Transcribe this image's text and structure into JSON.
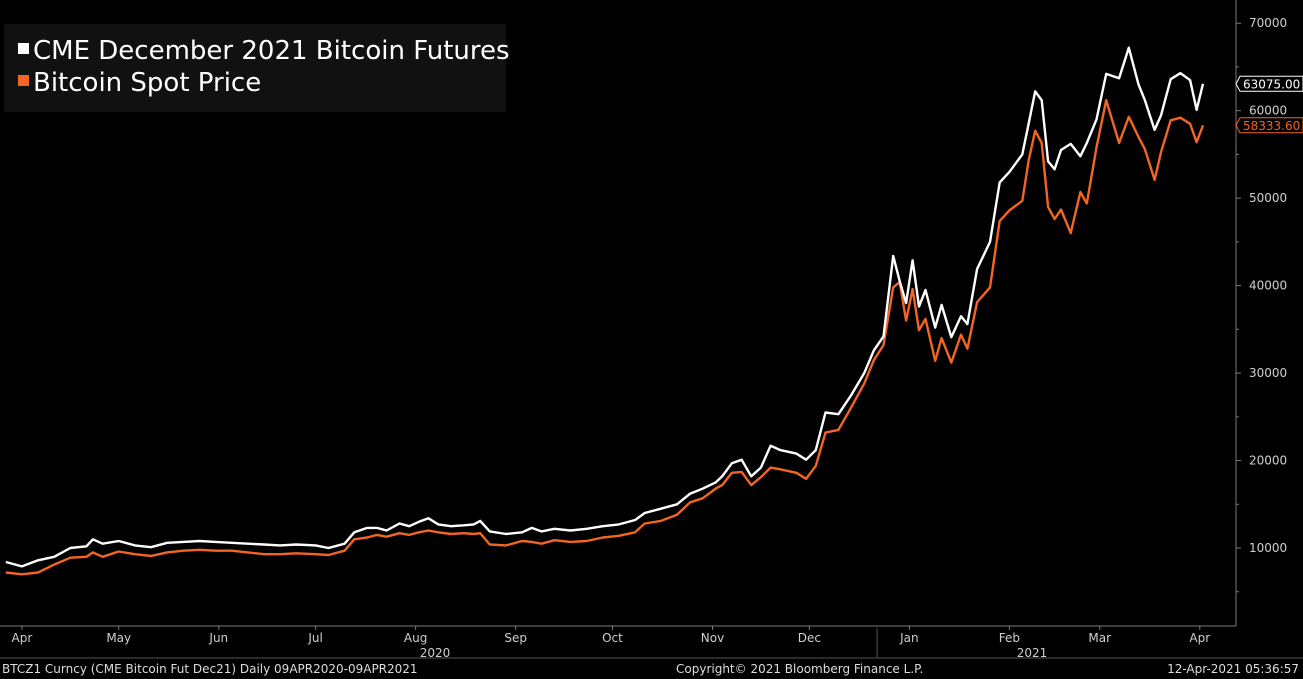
{
  "chart_data": {
    "type": "line",
    "yaxis_position": "right",
    "ylim": [
      0,
      72000
    ],
    "yticks": [
      10000,
      20000,
      30000,
      40000,
      50000,
      60000,
      70000
    ],
    "ytick_labels": [
      "10000",
      "20000",
      "30000",
      "40000",
      "50000",
      "60000",
      "70000"
    ],
    "x_months": [
      {
        "label": "Apr",
        "day": 5
      },
      {
        "label": "May",
        "day": 35
      },
      {
        "label": "Jun",
        "day": 66
      },
      {
        "label": "Jul",
        "day": 96
      },
      {
        "label": "Aug",
        "day": 127
      },
      {
        "label": "Sep",
        "day": 158
      },
      {
        "label": "Oct",
        "day": 188
      },
      {
        "label": "Nov",
        "day": 219
      },
      {
        "label": "Dec",
        "day": 249
      },
      {
        "label": "Jan",
        "day": 280
      },
      {
        "label": "Feb",
        "day": 311
      },
      {
        "label": "Mar",
        "day": 339
      },
      {
        "label": "Apr",
        "day": 370
      }
    ],
    "x_years": [
      {
        "label": "2020",
        "day": 133
      },
      {
        "label": "2021",
        "day": 318
      }
    ],
    "series": [
      {
        "name": "CME December 2021 Bitcoin Futures",
        "color": "#ffffff",
        "last_value_label": "63075.00",
        "points": [
          [
            0,
            8400
          ],
          [
            5,
            7900
          ],
          [
            10,
            8600
          ],
          [
            15,
            9000
          ],
          [
            20,
            10000
          ],
          [
            25,
            10200
          ],
          [
            27,
            11000
          ],
          [
            30,
            10500
          ],
          [
            35,
            10800
          ],
          [
            40,
            10300
          ],
          [
            45,
            10100
          ],
          [
            50,
            10600
          ],
          [
            55,
            10700
          ],
          [
            60,
            10800
          ],
          [
            65,
            10700
          ],
          [
            70,
            10600
          ],
          [
            75,
            10500
          ],
          [
            80,
            10400
          ],
          [
            85,
            10300
          ],
          [
            90,
            10400
          ],
          [
            96,
            10300
          ],
          [
            100,
            10000
          ],
          [
            105,
            10500
          ],
          [
            108,
            11800
          ],
          [
            112,
            12300
          ],
          [
            115,
            12300
          ],
          [
            118,
            12000
          ],
          [
            122,
            12800
          ],
          [
            125,
            12500
          ],
          [
            128,
            13000
          ],
          [
            131,
            13400
          ],
          [
            134,
            12700
          ],
          [
            138,
            12500
          ],
          [
            142,
            12600
          ],
          [
            145,
            12700
          ],
          [
            147,
            13100
          ],
          [
            150,
            11900
          ],
          [
            155,
            11600
          ],
          [
            160,
            11800
          ],
          [
            163,
            12300
          ],
          [
            166,
            11900
          ],
          [
            170,
            12200
          ],
          [
            175,
            12000
          ],
          [
            180,
            12200
          ],
          [
            185,
            12500
          ],
          [
            190,
            12700
          ],
          [
            195,
            13200
          ],
          [
            198,
            14000
          ],
          [
            203,
            14500
          ],
          [
            208,
            15000
          ],
          [
            212,
            16200
          ],
          [
            216,
            16800
          ],
          [
            220,
            17500
          ],
          [
            222,
            18200
          ],
          [
            225,
            19700
          ],
          [
            228,
            20100
          ],
          [
            231,
            18200
          ],
          [
            234,
            19200
          ],
          [
            237,
            21700
          ],
          [
            240,
            21200
          ],
          [
            245,
            20800
          ],
          [
            248,
            20100
          ],
          [
            251,
            21200
          ],
          [
            254,
            25500
          ],
          [
            258,
            25300
          ],
          [
            262,
            27500
          ],
          [
            266,
            30000
          ],
          [
            269,
            32600
          ],
          [
            272,
            34200
          ],
          [
            275,
            43400
          ],
          [
            277,
            40500
          ],
          [
            279,
            38000
          ],
          [
            281,
            42900
          ],
          [
            283,
            37600
          ],
          [
            285,
            39500
          ],
          [
            288,
            35200
          ],
          [
            290,
            37800
          ],
          [
            293,
            34100
          ],
          [
            296,
            36500
          ],
          [
            298,
            35600
          ],
          [
            301,
            41900
          ],
          [
            305,
            45000
          ],
          [
            308,
            51800
          ],
          [
            311,
            53000
          ],
          [
            315,
            55000
          ],
          [
            317,
            58600
          ],
          [
            319,
            62200
          ],
          [
            321,
            61200
          ],
          [
            323,
            54200
          ],
          [
            325,
            53300
          ],
          [
            327,
            55500
          ],
          [
            330,
            56200
          ],
          [
            333,
            54800
          ],
          [
            335,
            56300
          ],
          [
            338,
            59000
          ],
          [
            341,
            64200
          ],
          [
            345,
            63700
          ],
          [
            348,
            67200
          ],
          [
            351,
            63000
          ],
          [
            353,
            61200
          ],
          [
            356,
            57800
          ],
          [
            358,
            59500
          ],
          [
            361,
            63600
          ],
          [
            364,
            64300
          ],
          [
            367,
            63500
          ],
          [
            369,
            60100
          ],
          [
            371,
            63075
          ]
        ]
      },
      {
        "name": "Bitcoin Spot Price",
        "color": "#f26522",
        "last_value_label": "58333.60",
        "points": [
          [
            0,
            7200
          ],
          [
            5,
            7000
          ],
          [
            10,
            7200
          ],
          [
            15,
            8100
          ],
          [
            20,
            8900
          ],
          [
            25,
            9000
          ],
          [
            27,
            9500
          ],
          [
            30,
            9000
          ],
          [
            35,
            9600
          ],
          [
            40,
            9300
          ],
          [
            45,
            9100
          ],
          [
            50,
            9500
          ],
          [
            55,
            9700
          ],
          [
            60,
            9800
          ],
          [
            65,
            9700
          ],
          [
            70,
            9700
          ],
          [
            75,
            9500
          ],
          [
            80,
            9300
          ],
          [
            85,
            9300
          ],
          [
            90,
            9400
          ],
          [
            96,
            9300
          ],
          [
            100,
            9200
          ],
          [
            105,
            9700
          ],
          [
            108,
            11000
          ],
          [
            112,
            11200
          ],
          [
            115,
            11500
          ],
          [
            118,
            11300
          ],
          [
            122,
            11700
          ],
          [
            125,
            11500
          ],
          [
            128,
            11800
          ],
          [
            131,
            12000
          ],
          [
            134,
            11800
          ],
          [
            138,
            11600
          ],
          [
            142,
            11700
          ],
          [
            145,
            11600
          ],
          [
            147,
            11700
          ],
          [
            150,
            10400
          ],
          [
            155,
            10300
          ],
          [
            160,
            10800
          ],
          [
            163,
            10700
          ],
          [
            166,
            10500
          ],
          [
            170,
            10900
          ],
          [
            175,
            10700
          ],
          [
            180,
            10800
          ],
          [
            185,
            11200
          ],
          [
            190,
            11400
          ],
          [
            195,
            11800
          ],
          [
            198,
            12800
          ],
          [
            203,
            13100
          ],
          [
            208,
            13800
          ],
          [
            212,
            15200
          ],
          [
            216,
            15700
          ],
          [
            220,
            16800
          ],
          [
            222,
            17200
          ],
          [
            225,
            18600
          ],
          [
            228,
            18700
          ],
          [
            231,
            17200
          ],
          [
            234,
            18100
          ],
          [
            237,
            19200
          ],
          [
            240,
            19000
          ],
          [
            245,
            18600
          ],
          [
            248,
            17900
          ],
          [
            251,
            19400
          ],
          [
            254,
            23200
          ],
          [
            258,
            23500
          ],
          [
            262,
            26100
          ],
          [
            266,
            28800
          ],
          [
            269,
            31500
          ],
          [
            272,
            33200
          ],
          [
            275,
            39800
          ],
          [
            277,
            40400
          ],
          [
            279,
            36000
          ],
          [
            281,
            39600
          ],
          [
            283,
            34900
          ],
          [
            285,
            36200
          ],
          [
            288,
            31400
          ],
          [
            290,
            34000
          ],
          [
            293,
            31200
          ],
          [
            296,
            34400
          ],
          [
            298,
            32800
          ],
          [
            301,
            38100
          ],
          [
            305,
            39800
          ],
          [
            308,
            47400
          ],
          [
            311,
            48600
          ],
          [
            315,
            49700
          ],
          [
            317,
            54400
          ],
          [
            319,
            57700
          ],
          [
            321,
            56300
          ],
          [
            323,
            49000
          ],
          [
            325,
            47600
          ],
          [
            327,
            48700
          ],
          [
            330,
            46000
          ],
          [
            333,
            50700
          ],
          [
            335,
            49400
          ],
          [
            338,
            55800
          ],
          [
            341,
            61200
          ],
          [
            345,
            56300
          ],
          [
            348,
            59300
          ],
          [
            351,
            57000
          ],
          [
            353,
            55600
          ],
          [
            356,
            52100
          ],
          [
            358,
            55300
          ],
          [
            361,
            58900
          ],
          [
            364,
            59200
          ],
          [
            367,
            58500
          ],
          [
            369,
            56400
          ],
          [
            371,
            58333
          ]
        ]
      }
    ]
  },
  "footer": {
    "left": "BTCZ1 Curncy (CME Bitcoin Fut  Dec21)  Daily 09APR2020-09APR2021",
    "center": "Copyright© 2021 Bloomberg Finance L.P.",
    "right": "12-Apr-2021 05:36:57"
  }
}
